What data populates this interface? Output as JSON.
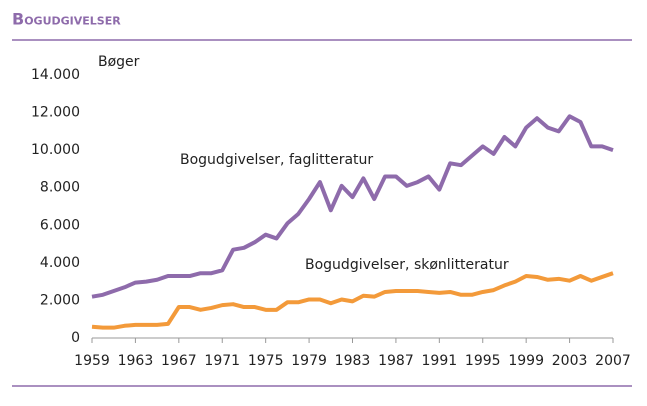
{
  "chart_data": {
    "type": "line",
    "title": "Bogudgivelser",
    "y_label": "Bøger",
    "x": [
      1959,
      1960,
      1961,
      1962,
      1963,
      1964,
      1965,
      1966,
      1967,
      1968,
      1969,
      1970,
      1971,
      1972,
      1973,
      1974,
      1975,
      1976,
      1977,
      1978,
      1979,
      1980,
      1981,
      1982,
      1983,
      1984,
      1985,
      1986,
      1987,
      1988,
      1989,
      1990,
      1991,
      1992,
      1993,
      1994,
      1995,
      1996,
      1997,
      1998,
      1999,
      2000,
      2001,
      2002,
      2003,
      2004,
      2005,
      2006,
      2007
    ],
    "series": [
      {
        "name": "Bogudgivelser, faglitteratur",
        "color": "#8e6bab",
        "values": [
          2200,
          2300,
          2500,
          2700,
          2950,
          3000,
          3100,
          3300,
          3300,
          3300,
          3450,
          3450,
          3600,
          4700,
          4800,
          5100,
          5500,
          5300,
          6100,
          6600,
          7400,
          8300,
          6800,
          8100,
          7500,
          8500,
          7400,
          8600,
          8600,
          8100,
          8300,
          8600,
          7900,
          9300,
          9200,
          9700,
          10200,
          9800,
          10700,
          10200,
          11200,
          11700,
          11200,
          11000,
          11800,
          11500,
          10200,
          10200,
          10000
        ]
      },
      {
        "name": "Bogudgivelser, skønlitteratur",
        "color": "#f39a3a",
        "values": [
          600,
          550,
          550,
          650,
          700,
          700,
          700,
          750,
          1650,
          1650,
          1500,
          1600,
          1750,
          1800,
          1650,
          1650,
          1500,
          1500,
          1900,
          1900,
          2050,
          2050,
          1850,
          2050,
          1950,
          2250,
          2200,
          2450,
          2500,
          2500,
          2500,
          2450,
          2400,
          2450,
          2300,
          2300,
          2450,
          2550,
          2800,
          3000,
          3300,
          3250,
          3100,
          3150,
          3050,
          3300,
          3050,
          3250,
          3450
        ]
      }
    ],
    "xlim": [
      1959,
      2007
    ],
    "xticks": [
      1959,
      1963,
      1967,
      1971,
      1975,
      1979,
      1983,
      1987,
      1991,
      1995,
      1999,
      2003,
      2007
    ],
    "ylim": [
      0,
      14000
    ],
    "yticks": [
      0,
      {
        "value": 2000,
        "label": "2.000"
      },
      {
        "value": 4000,
        "label": "4.000"
      },
      {
        "value": 6000,
        "label": "6.000"
      },
      {
        "value": 8000,
        "label": "8.000"
      },
      {
        "value": 10000,
        "label": "10.000"
      },
      {
        "value": 12000,
        "label": "12.000"
      },
      {
        "value": 14000,
        "label": "14.000"
      }
    ],
    "grid": false
  }
}
